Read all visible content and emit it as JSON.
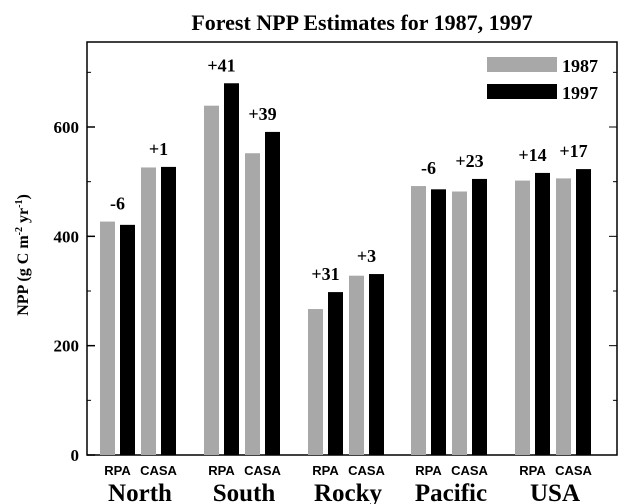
{
  "chart_data": {
    "type": "bar",
    "title": "Forest NPP Estimates for 1987, 1997",
    "ylabel": "NPP (g C m-2 yr-1)",
    "ylabel_parts": {
      "pre": "NPP (g C m",
      "sup1": "-2",
      "mid": " yr",
      "sup2": "-1",
      "post": ")"
    },
    "ylim": [
      0,
      700
    ],
    "yticks": [
      0,
      200,
      400,
      600
    ],
    "grid": false,
    "legend_position": "top-right",
    "series": [
      {
        "name": "1987",
        "color": "#a8a8a8"
      },
      {
        "name": "1997",
        "color": "#000000"
      }
    ],
    "groups": [
      {
        "label": "North",
        "models": [
          {
            "model": "RPA",
            "values": [
              427,
              421
            ],
            "change": "-6"
          },
          {
            "model": "CASA",
            "values": [
              526,
              527
            ],
            "change": "+1"
          }
        ]
      },
      {
        "label": "South",
        "models": [
          {
            "model": "RPA",
            "values": [
              639,
              680
            ],
            "change": "+41"
          },
          {
            "model": "CASA",
            "values": [
              552,
              591
            ],
            "change": "+39"
          }
        ]
      },
      {
        "label": "Rocky",
        "models": [
          {
            "model": "RPA",
            "values": [
              267,
              298
            ],
            "change": "+31"
          },
          {
            "model": "CASA",
            "values": [
              328,
              331
            ],
            "change": "+3"
          }
        ]
      },
      {
        "label": "Pacific",
        "models": [
          {
            "model": "RPA",
            "values": [
              492,
              486
            ],
            "change": "-6"
          },
          {
            "model": "CASA",
            "values": [
              482,
              505
            ],
            "change": "+23"
          }
        ]
      },
      {
        "label": "USA",
        "models": [
          {
            "model": "RPA",
            "values": [
              502,
              516
            ],
            "change": "+14"
          },
          {
            "model": "CASA",
            "values": [
              506,
              523
            ],
            "change": "+17"
          }
        ]
      }
    ]
  }
}
